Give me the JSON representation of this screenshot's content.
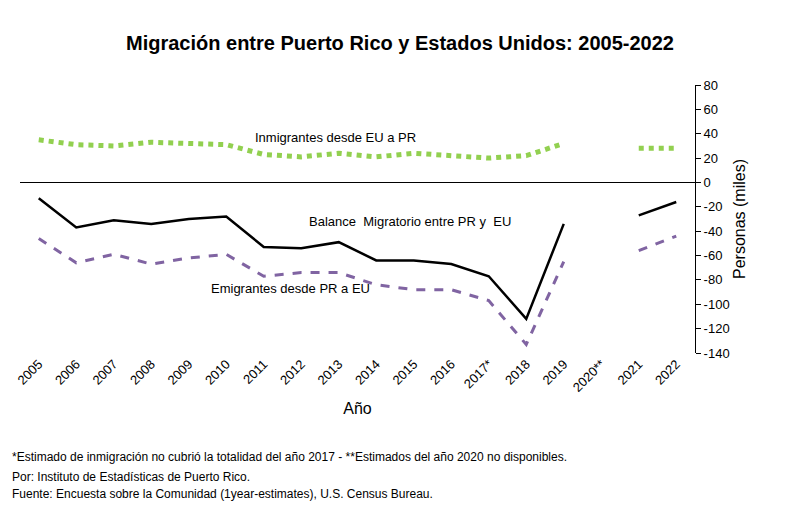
{
  "chart_data": {
    "type": "line",
    "title": "Migración entre Puerto Rico y Estados Unidos: 2005-2022",
    "x_label": "Año",
    "y_label": "Personas (miles)",
    "categories": [
      "2005",
      "2006",
      "2007",
      "2008",
      "2009",
      "2010",
      "2011",
      "2012",
      "2013",
      "2014",
      "2015",
      "2016",
      "2017*",
      "2018",
      "2019",
      "2020**",
      "2021",
      "2022"
    ],
    "series": [
      {
        "name": "Inmigrantes desde EU a PR",
        "color": "#92D050",
        "line_style": "dotted",
        "values": [
          35,
          31,
          30,
          33,
          32,
          31,
          23,
          21,
          24,
          21,
          24,
          22,
          20,
          22,
          32,
          null,
          28,
          28
        ]
      },
      {
        "name": "Balance  Migratorio entre PR y  EU",
        "color": "#000000",
        "line_style": "solid",
        "values": [
          -13,
          -37,
          -31,
          -34,
          -30,
          -28,
          -53,
          -54,
          -49,
          -64,
          -64,
          -67,
          -77,
          -112,
          -34,
          null,
          -27,
          -16
        ]
      },
      {
        "name": "Emigrantes desde PR a EU",
        "color": "#8064A2",
        "line_style": "dashed",
        "values": [
          -46,
          -66,
          -59,
          -67,
          -62,
          -59,
          -77,
          -74,
          -74,
          -84,
          -88,
          -88,
          -97,
          -133,
          -65,
          null,
          -56,
          -44
        ]
      }
    ],
    "ylim": [
      -140,
      80
    ],
    "yticks": [
      -140,
      -120,
      -100,
      -80,
      -60,
      -40,
      -20,
      0,
      20,
      40,
      60,
      80
    ],
    "grid": false,
    "notes": [
      "*Estimado de inmigración no cubrió la totalidad del año 2017 - **Estimados del año 2020 no disponibles.",
      "Por: Instituto de Estadísticas de Puerto Rico.",
      "Fuente: Encuesta sobre la Comunidad (1year-estimates), U.S. Census Bureau."
    ]
  }
}
